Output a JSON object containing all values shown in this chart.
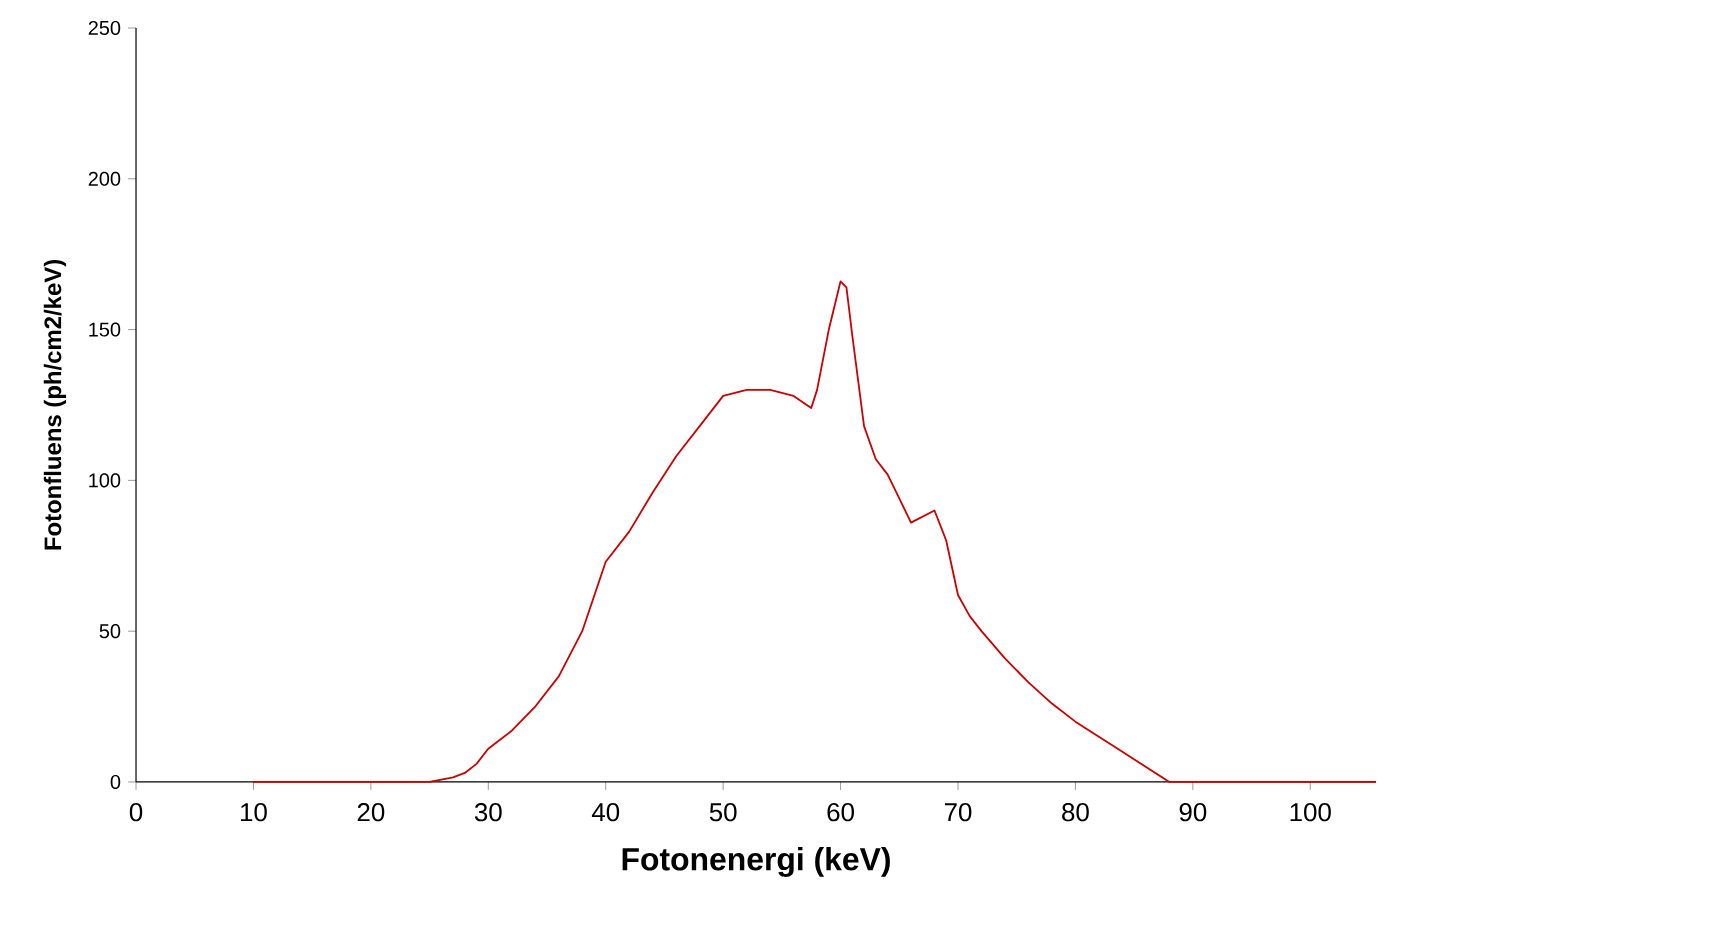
{
  "chart_data": {
    "type": "line",
    "xlabel": "Fotonenergi (keV)",
    "ylabel": "Fotonfluens (ph/cm2/keV)",
    "xlim": [
      0,
      105.6
    ],
    "ylim": [
      0,
      250
    ],
    "xticks": [
      0,
      10,
      20,
      30,
      40,
      50,
      60,
      70,
      80,
      90,
      100
    ],
    "yticks": [
      0,
      50,
      100,
      150,
      200,
      250
    ],
    "series": [
      {
        "color": "#cc0000",
        "x": [
          10,
          20,
          25,
          27,
          28,
          29,
          30,
          32,
          34,
          36,
          38,
          40,
          42,
          44,
          46,
          48,
          50,
          52,
          54,
          56,
          57.5,
          58,
          59,
          60,
          60.5,
          61,
          62,
          63,
          64,
          65,
          66,
          67,
          68,
          69,
          70,
          71,
          72,
          74,
          76,
          78,
          80,
          82,
          84,
          86,
          88,
          90,
          105.6
        ],
        "values": [
          0,
          0,
          0,
          1.5,
          3,
          6,
          11,
          17,
          25,
          35,
          50,
          73,
          83,
          96,
          108,
          118,
          128,
          130,
          130,
          128,
          124,
          130,
          150,
          166,
          164,
          148,
          118,
          107,
          102,
          94,
          86,
          88,
          90,
          80,
          62,
          55,
          50,
          41,
          33,
          26,
          20,
          15,
          10,
          5,
          0,
          0,
          0
        ]
      }
    ]
  }
}
